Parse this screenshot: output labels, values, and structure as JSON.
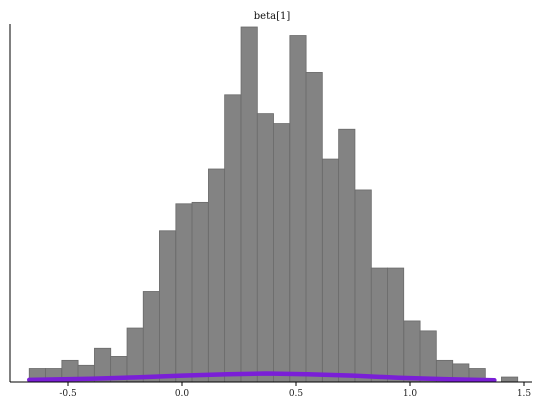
{
  "chart_data": {
    "type": "bar",
    "title": "beta[1]",
    "xlabel": "",
    "ylabel": "",
    "xlim": [
      -0.72,
      1.52
    ],
    "ylim": [
      0,
      1.0
    ],
    "x_ticks": [
      -0.5,
      0.0,
      0.5,
      1.0,
      1.5
    ],
    "x_tick_labels": [
      "-0.5",
      "0.0",
      "0.5",
      "1.0",
      "1.5"
    ],
    "bin_width": 0.0714,
    "bin_starts": [
      -0.67,
      -0.599,
      -0.527,
      -0.456,
      -0.384,
      -0.313,
      -0.241,
      -0.17,
      -0.099,
      -0.027,
      0.044,
      0.116,
      0.187,
      0.259,
      0.33,
      0.401,
      0.473,
      0.544,
      0.616,
      0.687,
      0.759,
      0.83,
      0.901,
      0.973,
      1.044,
      1.116,
      1.187,
      1.259,
      1.33,
      1.401
    ],
    "values": [
      0.038,
      0.038,
      0.061,
      0.047,
      0.095,
      0.072,
      0.152,
      0.255,
      0.426,
      0.502,
      0.506,
      0.6,
      0.809,
      1.0,
      0.756,
      0.728,
      0.976,
      0.872,
      0.628,
      0.712,
      0.541,
      0.321,
      0.321,
      0.172,
      0.144,
      0.061,
      0.051,
      0.038,
      0.0,
      0.014
    ],
    "bar_color": "#838383",
    "series": [
      {
        "type": "line",
        "color": "#7a1fd6",
        "x": [
          -0.67,
          -0.4,
          -0.2,
          0.0,
          0.2,
          0.37,
          0.55,
          0.75,
          0.95,
          1.15,
          1.37
        ],
        "y": [
          0.006,
          0.009,
          0.013,
          0.018,
          0.022,
          0.024,
          0.022,
          0.018,
          0.012,
          0.008,
          0.005
        ]
      }
    ],
    "grid": false,
    "legend": "none"
  }
}
